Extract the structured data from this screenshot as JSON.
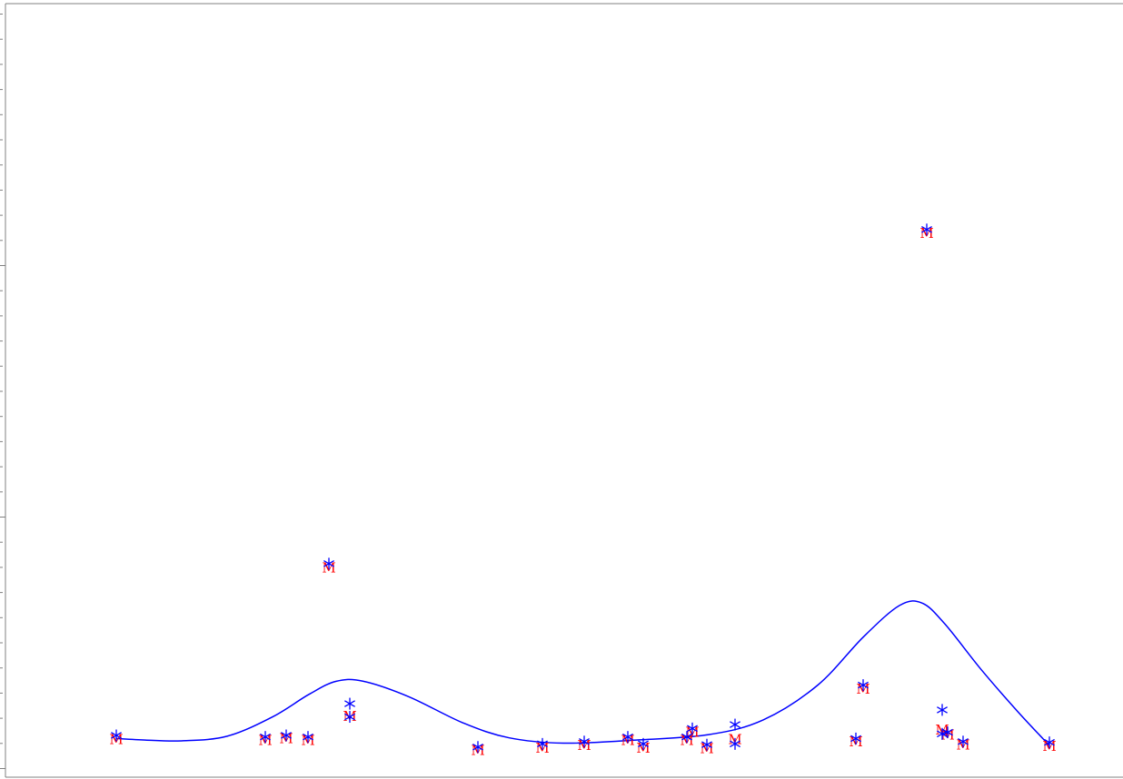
{
  "chart_data": {
    "type": "scatter",
    "title": "",
    "xlabel": "",
    "ylabel": "",
    "xlim": [
      0,
      1236
    ],
    "ylim": [
      0,
      1
    ],
    "grid": false,
    "marker_text": "M",
    "colors": {
      "star": "#0000ff",
      "m": "#ff0000",
      "curve": "#0000ff",
      "axis": "#808080"
    },
    "star_points": [
      {
        "x": 128,
        "y": 0.054
      },
      {
        "x": 292,
        "y": 0.052
      },
      {
        "x": 315,
        "y": 0.054
      },
      {
        "x": 339,
        "y": 0.052
      },
      {
        "x": 362,
        "y": 0.276
      },
      {
        "x": 385,
        "y": 0.095
      },
      {
        "x": 385,
        "y": 0.078
      },
      {
        "x": 526,
        "y": 0.039
      },
      {
        "x": 597,
        "y": 0.043
      },
      {
        "x": 643,
        "y": 0.046
      },
      {
        "x": 691,
        "y": 0.052
      },
      {
        "x": 708,
        "y": 0.043
      },
      {
        "x": 756,
        "y": 0.052
      },
      {
        "x": 762,
        "y": 0.063
      },
      {
        "x": 778,
        "y": 0.042
      },
      {
        "x": 809,
        "y": 0.068
      },
      {
        "x": 809,
        "y": 0.043
      },
      {
        "x": 942,
        "y": 0.05
      },
      {
        "x": 950,
        "y": 0.119
      },
      {
        "x": 1020,
        "y": 0.708
      },
      {
        "x": 1037,
        "y": 0.087
      },
      {
        "x": 1037,
        "y": 0.056
      },
      {
        "x": 1043,
        "y": 0.058
      },
      {
        "x": 1060,
        "y": 0.046
      },
      {
        "x": 1155,
        "y": 0.045
      }
    ],
    "m_points": [
      {
        "x": 128,
        "y": 0.05
      },
      {
        "x": 292,
        "y": 0.049
      },
      {
        "x": 315,
        "y": 0.051
      },
      {
        "x": 339,
        "y": 0.049
      },
      {
        "x": 362,
        "y": 0.272
      },
      {
        "x": 385,
        "y": 0.08
      },
      {
        "x": 526,
        "y": 0.036
      },
      {
        "x": 597,
        "y": 0.039
      },
      {
        "x": 643,
        "y": 0.042
      },
      {
        "x": 691,
        "y": 0.049
      },
      {
        "x": 708,
        "y": 0.039
      },
      {
        "x": 756,
        "y": 0.049
      },
      {
        "x": 762,
        "y": 0.059
      },
      {
        "x": 778,
        "y": 0.038
      },
      {
        "x": 809,
        "y": 0.05
      },
      {
        "x": 942,
        "y": 0.047
      },
      {
        "x": 950,
        "y": 0.115
      },
      {
        "x": 1020,
        "y": 0.704
      },
      {
        "x": 1037,
        "y": 0.062
      },
      {
        "x": 1043,
        "y": 0.056
      },
      {
        "x": 1060,
        "y": 0.043
      },
      {
        "x": 1155,
        "y": 0.041
      }
    ],
    "curve": {
      "x": [
        128,
        160,
        200,
        250,
        300,
        340,
        370,
        400,
        450,
        510,
        560,
        620,
        700,
        780,
        840,
        900,
        950,
        990,
        1015,
        1040,
        1080,
        1120,
        1155
      ],
      "y": [
        0.05,
        0.048,
        0.047,
        0.053,
        0.078,
        0.107,
        0.124,
        0.124,
        0.104,
        0.07,
        0.051,
        0.044,
        0.048,
        0.055,
        0.074,
        0.119,
        0.181,
        0.222,
        0.225,
        0.198,
        0.139,
        0.085,
        0.041
      ]
    }
  }
}
